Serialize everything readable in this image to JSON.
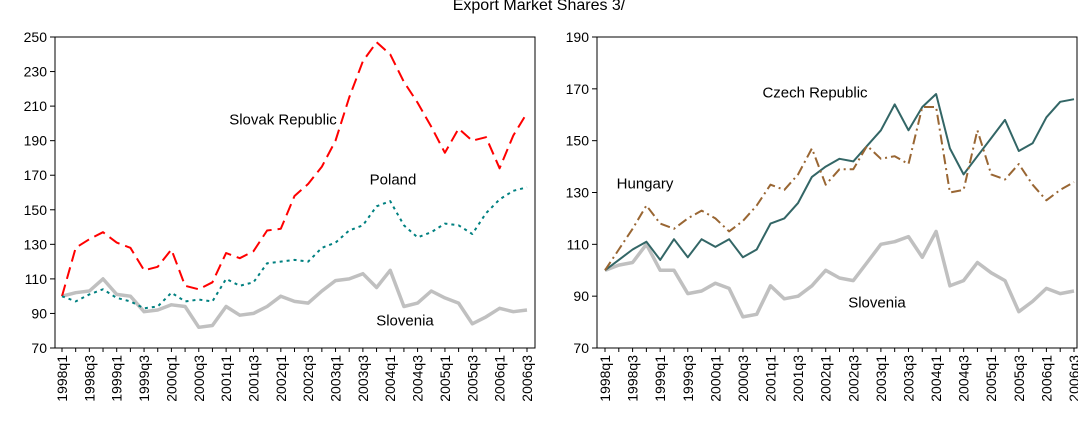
{
  "title": "Export Market Shares 3/",
  "chart_data": [
    {
      "type": "line",
      "categories": [
        "1998q1",
        null,
        "1998q3",
        null,
        "1999q1",
        null,
        "1999q3",
        null,
        "2000q1",
        null,
        "2000q3",
        null,
        "2001q1",
        null,
        "2001q3",
        null,
        "2002q1",
        null,
        "2002q3",
        null,
        "2003q1",
        null,
        "2003q3",
        null,
        "2004q1",
        null,
        "2004q3",
        null,
        "2005q1",
        null,
        "2005q3",
        null,
        "2006q1",
        null,
        "2006q3"
      ],
      "ylim": [
        70,
        250
      ],
      "yticks": [
        70,
        90,
        110,
        130,
        150,
        170,
        190,
        210,
        230,
        250
      ],
      "series": [
        {
          "name": "Slovak Republic",
          "color": "#ff0000",
          "style": "dashed",
          "values": [
            100,
            128,
            133,
            137,
            131,
            128,
            115,
            117,
            127,
            106,
            104,
            108,
            125,
            122,
            126,
            138,
            139,
            158,
            165,
            175,
            190,
            215,
            236,
            247,
            240,
            224,
            212,
            198,
            183,
            197,
            190,
            192,
            174,
            193,
            206
          ]
        },
        {
          "name": "Poland",
          "color": "#008080",
          "style": "dotted",
          "values": [
            100,
            97,
            101,
            104,
            99,
            97,
            93,
            94,
            102,
            97,
            98,
            97,
            110,
            106,
            108,
            119,
            120,
            121,
            120,
            128,
            131,
            138,
            141,
            152,
            155,
            141,
            134,
            137,
            142,
            141,
            136,
            148,
            156,
            161,
            163
          ]
        },
        {
          "name": "Slovenia",
          "color": "#c0c0c0",
          "style": "solid",
          "values": [
            100,
            102,
            103,
            110,
            101,
            100,
            91,
            92,
            95,
            94,
            82,
            83,
            94,
            89,
            90,
            94,
            100,
            97,
            96,
            103,
            109,
            110,
            113,
            105,
            115,
            94,
            96,
            103,
            99,
            96,
            84,
            88,
            93,
            91,
            92
          ]
        }
      ]
    },
    {
      "type": "line",
      "categories": [
        "1998q1",
        null,
        "1998q3",
        null,
        "1999q1",
        null,
        "1999q3",
        null,
        "2000q1",
        null,
        "2000q3",
        null,
        "2001q1",
        null,
        "2001q3",
        null,
        "2002q1",
        null,
        "2002q3",
        null,
        "2003q1",
        null,
        "2003q3",
        null,
        "2004q1",
        null,
        "2004q3",
        null,
        "2005q1",
        null,
        "2005q3",
        null,
        "2006q1",
        null,
        "2006q3"
      ],
      "ylim": [
        70,
        190
      ],
      "yticks": [
        70,
        90,
        110,
        130,
        150,
        170,
        190
      ],
      "series": [
        {
          "name": "Czech Republic",
          "color": "#336666",
          "style": "solid",
          "values": [
            100,
            104,
            108,
            111,
            104,
            112,
            105,
            112,
            109,
            112,
            105,
            108,
            118,
            120,
            126,
            136,
            140,
            143,
            142,
            148,
            154,
            164,
            154,
            163,
            168,
            147,
            137,
            144,
            151,
            158,
            146,
            149,
            159,
            165,
            166
          ]
        },
        {
          "name": "Hungary",
          "color": "#996633",
          "style": "dashdot",
          "values": [
            100,
            108,
            116,
            125,
            118,
            116,
            120,
            123,
            120,
            115,
            119,
            125,
            133,
            131,
            137,
            147,
            133,
            139,
            139,
            148,
            143,
            144,
            141,
            163,
            163,
            130,
            131,
            154,
            137,
            135,
            141,
            133,
            127,
            131,
            134
          ]
        },
        {
          "name": "Slovenia",
          "color": "#c0c0c0",
          "style": "solid",
          "values": [
            100,
            102,
            103,
            110,
            100,
            100,
            91,
            92,
            95,
            93,
            82,
            83,
            94,
            89,
            90,
            94,
            100,
            97,
            96,
            103,
            110,
            111,
            113,
            105,
            115,
            94,
            96,
            103,
            99,
            96,
            84,
            88,
            93,
            91,
            92
          ]
        }
      ]
    }
  ]
}
